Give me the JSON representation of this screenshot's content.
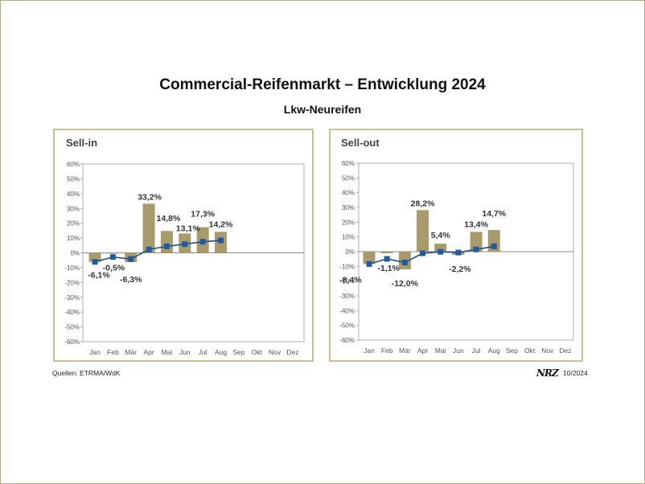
{
  "page": {
    "title": "Commercial-Reifenmarkt – Entwicklung 2024",
    "subtitle": "Lkw-Neureifen",
    "source": "Quellen: ETRMA/WdK",
    "logo": "NRZ",
    "date": "10/2024"
  },
  "colors": {
    "background": "#ffffff",
    "page_border": "#b5aa80",
    "frame": "#cbbf95",
    "bar": "#a89a6a",
    "line": "#1c4f8e",
    "marker": "#1f5ba1",
    "title_text": "#444444",
    "axis_text": "#555555",
    "label_text": "#333333",
    "axis_line": "#9a9a9a"
  },
  "chart_data": [
    {
      "type": "bar",
      "title": "Sell-in",
      "categories": [
        "Jan",
        "Feb",
        "Mär",
        "Apr",
        "Mai",
        "Jun",
        "Jul",
        "Aug",
        "Sep",
        "Okt",
        "Nov",
        "Dez"
      ],
      "bar_values": [
        -6.1,
        -0.5,
        -6.3,
        33.2,
        14.8,
        13.1,
        17.3,
        14.2
      ],
      "data_labels": [
        "-6,1%",
        "-0,5%",
        "-6,3%",
        "33,2%",
        "14,8%",
        "13,1%",
        "17,3%",
        "14,2%"
      ],
      "line_values": [
        -6.1,
        -2.8,
        -4.2,
        2.3,
        4.4,
        5.9,
        7.5,
        8.4
      ],
      "ylim": [
        -60,
        60
      ],
      "ytick_values": [
        60,
        50,
        40,
        30,
        20,
        10,
        0,
        -10,
        -20,
        -30,
        -40,
        -50,
        -60
      ],
      "ytick_labels": [
        "60%",
        "50%",
        "40%",
        "30%",
        "20%",
        "10%",
        "0%",
        "-10%",
        "-20%",
        "-30%",
        "-40%",
        "-50%",
        "-60%"
      ]
    },
    {
      "type": "bar",
      "title": "Sell-out",
      "categories": [
        "Jan",
        "Feb",
        "Mär",
        "Apr",
        "Mai",
        "Jun",
        "Jul",
        "Aug",
        "Sep",
        "Okt",
        "Nov",
        "Dez"
      ],
      "bar_values": [
        -8.4,
        -1.1,
        -12.0,
        28.2,
        5.4,
        -2.2,
        13.4,
        14.7
      ],
      "data_labels": [
        "-8,4%",
        "-1,1%",
        "-12,0%",
        "28,2%",
        "5,4%",
        "-2,2%",
        "13,4%",
        "14,7%"
      ],
      "line_values": [
        -8.4,
        -4.9,
        -7.4,
        -1.1,
        -0.1,
        -0.6,
        1.5,
        3.6
      ],
      "ylim": [
        -60,
        60
      ],
      "ytick_values": [
        60,
        50,
        40,
        30,
        20,
        10,
        0,
        -10,
        -20,
        -30,
        -40,
        -50,
        -60
      ],
      "ytick_labels": [
        "60%",
        "50%",
        "40%",
        "30%",
        "20%",
        "10%",
        "0%",
        "-10%",
        "-20%",
        "-30%",
        "-40%",
        "-50%",
        "-60%"
      ]
    }
  ]
}
